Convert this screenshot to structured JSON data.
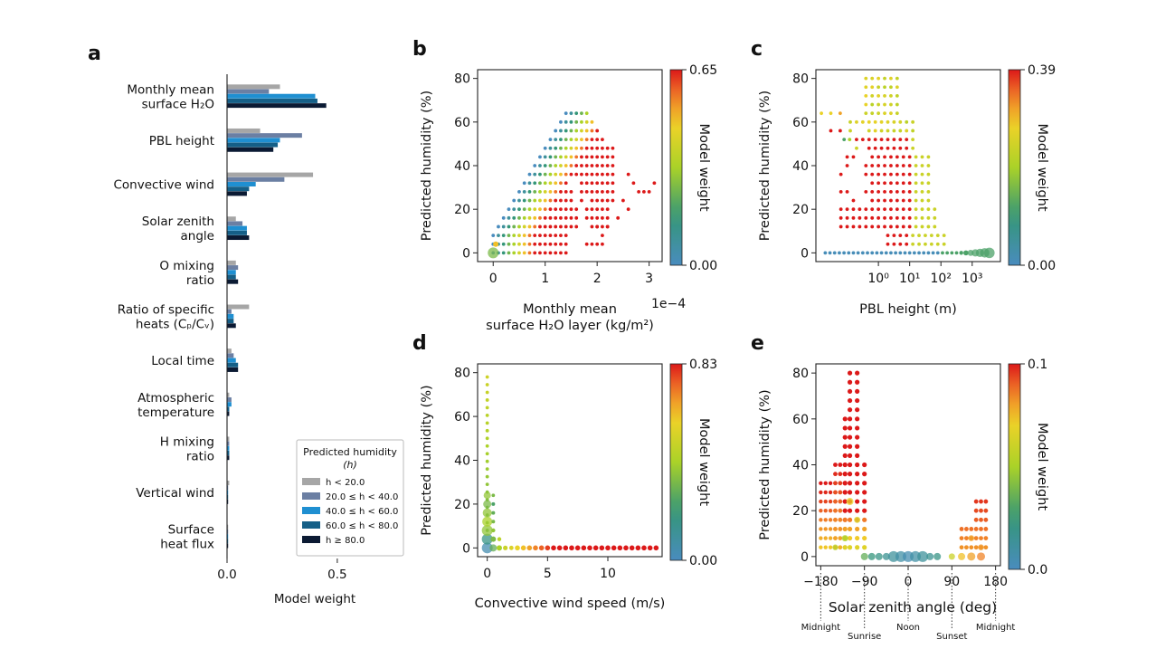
{
  "panel_letters": [
    "a",
    "b",
    "c",
    "d",
    "e"
  ],
  "colorbar_label": "Model weight",
  "chart_data": [
    {
      "panel": "a",
      "type": "bar",
      "orientation": "horizontal",
      "xlabel": "Model weight",
      "xlim": [
        0,
        0.8
      ],
      "xticks": [
        "0.0",
        "0.5"
      ],
      "legend": {
        "title": "Predicted humidity",
        "title2": "(h)",
        "placement": "lower-right"
      },
      "categories": [
        [
          "Monthly mean",
          "surface H₂O"
        ],
        [
          "PBL height"
        ],
        [
          "Convective wind"
        ],
        [
          "Solar zenith",
          "angle"
        ],
        [
          "O mixing",
          "ratio"
        ],
        [
          "Ratio of specific",
          "heats (Cₚ/Cᵥ)"
        ],
        [
          "Local time"
        ],
        [
          "Atmospheric",
          "temperature"
        ],
        [
          "H mixing",
          "ratio"
        ],
        [
          "Vertical wind"
        ],
        [
          "Surface",
          "heat flux"
        ]
      ],
      "series": [
        {
          "name": "h < 20.0",
          "color": "#a6a6a6",
          "values": [
            0.24,
            0.15,
            0.39,
            0.04,
            0.04,
            0.1,
            0.02,
            0.01,
            0.01,
            0.01,
            0.005
          ]
        },
        {
          "name": "20.0 ≤ h < 40.0",
          "color": "#6b7fa3",
          "values": [
            0.19,
            0.34,
            0.26,
            0.07,
            0.05,
            0.02,
            0.03,
            0.02,
            0.01,
            0.005,
            0.005
          ]
        },
        {
          "name": "40.0 ≤ h < 60.0",
          "color": "#1f8fd1",
          "values": [
            0.4,
            0.24,
            0.13,
            0.09,
            0.04,
            0.03,
            0.04,
            0.02,
            0.01,
            0.005,
            0.005
          ]
        },
        {
          "name": "60.0 ≤ h < 80.0",
          "color": "#155f87",
          "values": [
            0.41,
            0.23,
            0.1,
            0.09,
            0.04,
            0.03,
            0.05,
            0.01,
            0.01,
            0.005,
            0.005
          ]
        },
        {
          "name": "h ≥ 80.0",
          "color": "#0b1a33",
          "values": [
            0.45,
            0.21,
            0.09,
            0.1,
            0.05,
            0.04,
            0.05,
            0.01,
            0.01,
            0.005,
            0.005
          ]
        }
      ]
    },
    {
      "panel": "b",
      "type": "scatter",
      "xlabel": [
        "Monthly mean",
        "surface H₂O layer (kg/m²)"
      ],
      "ylabel": "Predicted humidity (%)",
      "x_multiplier": "1e−4",
      "xlim": [
        -0.3,
        3.25
      ],
      "ylim": [
        -4,
        84
      ],
      "xticks": [
        0,
        1,
        2,
        3
      ],
      "yticks": [
        0,
        20,
        40,
        60,
        80
      ],
      "colorbar_range": [
        "0.00",
        "0.65"
      ],
      "note": "Point grid: x in 1e-4 kg/m², y in %, color-weight 0 (blue) to max (red)."
    },
    {
      "panel": "c",
      "type": "scatter",
      "xlabel": "PBL height (m)",
      "ylabel": "Predicted humidity (%)",
      "xscale": "log",
      "xlim": [
        0.01,
        8000
      ],
      "ylim": [
        -4,
        84
      ],
      "xticks": [
        "10⁰",
        "10¹",
        "10²",
        "10³"
      ],
      "yticks": [
        0,
        20,
        40,
        60,
        80
      ],
      "colorbar_range": [
        "0.00",
        "0.39"
      ]
    },
    {
      "panel": "d",
      "type": "scatter",
      "xlabel": "Convective wind speed (m/s)",
      "ylabel": "Predicted humidity (%)",
      "xlim": [
        -0.8,
        14.5
      ],
      "ylim": [
        -4,
        84
      ],
      "xticks": [
        0,
        5,
        10
      ],
      "yticks": [
        0,
        20,
        40,
        60,
        80
      ],
      "colorbar_range": [
        "0.00",
        "0.83"
      ]
    },
    {
      "panel": "e",
      "type": "scatter",
      "xlabel": "Solar zenith angle (deg)",
      "ylabel": "Predicted humidity (%)",
      "xlim": [
        -190,
        190
      ],
      "ylim": [
        -4,
        84
      ],
      "xticks": [
        "−180",
        "−90",
        "0",
        "90",
        "180"
      ],
      "yticks": [
        0,
        20,
        40,
        60,
        80
      ],
      "colorbar_range": [
        "0.0",
        "0.1"
      ],
      "annotations": [
        {
          "label": "Midnight",
          "x": -180
        },
        {
          "label": "Sunrise",
          "x": -90
        },
        {
          "label": "Noon",
          "x": 0
        },
        {
          "label": "Sunset",
          "x": 90
        },
        {
          "label": "Midnight",
          "x": 180
        }
      ]
    }
  ]
}
